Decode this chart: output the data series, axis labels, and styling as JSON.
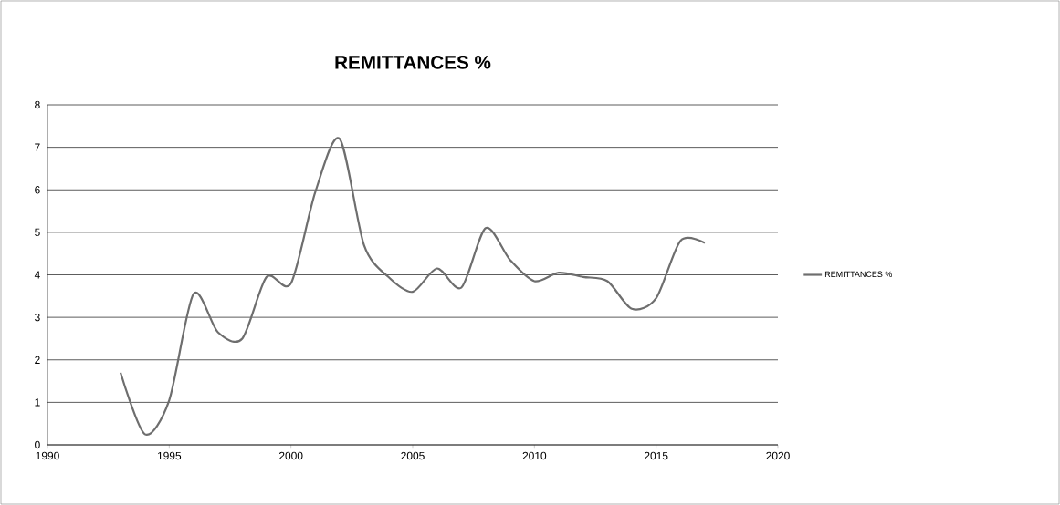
{
  "chart_data": {
    "type": "line",
    "title": "REMITTANCES %",
    "x": [
      1993,
      1994,
      1995,
      1996,
      1997,
      1998,
      1999,
      2000,
      2001,
      2002,
      2003,
      2004,
      2005,
      2006,
      2007,
      2008,
      2009,
      2010,
      2011,
      2012,
      2013,
      2014,
      2015,
      2016,
      2017
    ],
    "series": [
      {
        "name": "REMITTANCES %",
        "color": "#6e6e6e",
        "values": [
          1.7,
          0.25,
          1.05,
          3.55,
          2.65,
          2.5,
          3.95,
          3.8,
          5.95,
          7.2,
          4.7,
          3.95,
          3.6,
          4.15,
          3.7,
          5.1,
          4.35,
          3.85,
          4.05,
          3.95,
          3.85,
          3.2,
          3.45,
          4.8,
          4.75
        ]
      }
    ],
    "xlim": [
      1990,
      2020
    ],
    "xticks": [
      1990,
      1995,
      2000,
      2005,
      2010,
      2015,
      2020
    ],
    "ylim": [
      0,
      8
    ],
    "yticks": [
      0,
      1,
      2,
      3,
      4,
      5,
      6,
      7,
      8
    ],
    "grid": "y",
    "legend": "right",
    "marker": "none",
    "line_style": "solid"
  }
}
